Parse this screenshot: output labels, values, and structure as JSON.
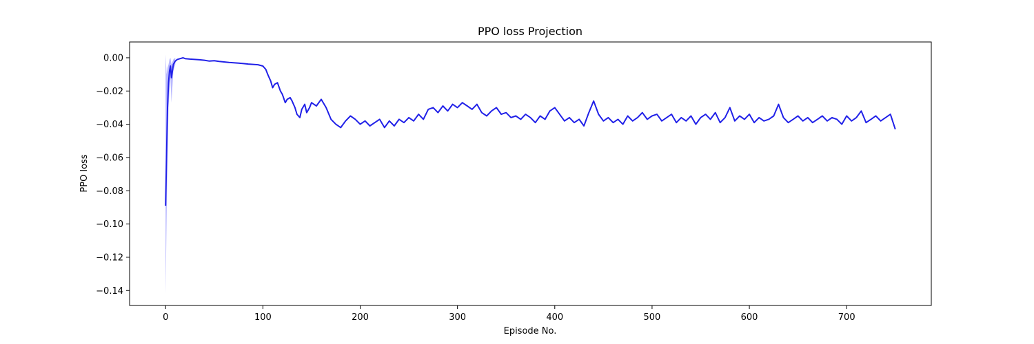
{
  "chart_data": {
    "type": "line",
    "title": "PPO loss Projection",
    "xlabel": "Episode No.",
    "ylabel": "PPO loss",
    "xlim": [
      -37,
      787
    ],
    "ylim": [
      -0.149,
      0.0095
    ],
    "x_ticks": [
      0,
      100,
      200,
      300,
      400,
      500,
      600,
      700
    ],
    "y_ticks": [
      0.0,
      -0.02,
      -0.04,
      -0.06,
      -0.08,
      -0.1,
      -0.12,
      -0.14
    ],
    "x_tick_labels": [
      "0",
      "100",
      "200",
      "300",
      "400",
      "500",
      "600",
      "700"
    ],
    "y_tick_labels": [
      "0.00",
      "−0.02",
      "−0.04",
      "−0.06",
      "−0.08",
      "−0.10",
      "−0.12",
      "−0.14"
    ],
    "grid": false,
    "legend": "none",
    "colors": {
      "line": "#2020e8",
      "band": "#8a8aff"
    },
    "series": [
      {
        "x": [
          0,
          1,
          2,
          3,
          4,
          5,
          6,
          8,
          10,
          12,
          15,
          18,
          20,
          25,
          30,
          35,
          40,
          45,
          50,
          55,
          60,
          65,
          70,
          75,
          80,
          85,
          90,
          95,
          100,
          103,
          105,
          108,
          110,
          112,
          115,
          118,
          120,
          123,
          125,
          128,
          130,
          133,
          135,
          138,
          140,
          143,
          145,
          148,
          150,
          155,
          160,
          165,
          170,
          175,
          180,
          185,
          190,
          195,
          200,
          205,
          210,
          215,
          220,
          225,
          230,
          235,
          240,
          245,
          250,
          255,
          260,
          265,
          270,
          275,
          280,
          285,
          290,
          295,
          300,
          305,
          310,
          315,
          320,
          325,
          330,
          335,
          340,
          345,
          350,
          355,
          360,
          365,
          370,
          375,
          380,
          385,
          390,
          395,
          400,
          405,
          410,
          415,
          420,
          425,
          430,
          435,
          440,
          445,
          450,
          455,
          460,
          465,
          470,
          475,
          480,
          485,
          490,
          495,
          500,
          505,
          510,
          515,
          520,
          525,
          530,
          535,
          540,
          545,
          550,
          555,
          560,
          565,
          570,
          575,
          580,
          585,
          590,
          595,
          600,
          605,
          610,
          615,
          620,
          625,
          630,
          635,
          640,
          645,
          650,
          655,
          660,
          665,
          670,
          675,
          680,
          685,
          690,
          695,
          700,
          705,
          710,
          715,
          720,
          725,
          730,
          735,
          740,
          745,
          750
        ],
        "y": [
          -0.089,
          -0.06,
          -0.03,
          -0.015,
          -0.008,
          -0.005,
          -0.012,
          -0.004,
          -0.002,
          -0.001,
          -0.0005,
          0.0,
          -0.0005,
          -0.0008,
          -0.001,
          -0.0012,
          -0.0015,
          -0.002,
          -0.0018,
          -0.0022,
          -0.0025,
          -0.0028,
          -0.003,
          -0.0032,
          -0.0035,
          -0.0038,
          -0.004,
          -0.0042,
          -0.005,
          -0.007,
          -0.01,
          -0.014,
          -0.018,
          -0.016,
          -0.015,
          -0.02,
          -0.022,
          -0.027,
          -0.025,
          -0.024,
          -0.026,
          -0.03,
          -0.034,
          -0.036,
          -0.031,
          -0.028,
          -0.033,
          -0.03,
          -0.027,
          -0.029,
          -0.025,
          -0.03,
          -0.037,
          -0.04,
          -0.042,
          -0.038,
          -0.035,
          -0.037,
          -0.04,
          -0.038,
          -0.041,
          -0.039,
          -0.037,
          -0.042,
          -0.038,
          -0.041,
          -0.037,
          -0.039,
          -0.036,
          -0.038,
          -0.034,
          -0.037,
          -0.031,
          -0.03,
          -0.033,
          -0.029,
          -0.032,
          -0.028,
          -0.03,
          -0.027,
          -0.029,
          -0.031,
          -0.028,
          -0.033,
          -0.035,
          -0.032,
          -0.03,
          -0.034,
          -0.033,
          -0.036,
          -0.035,
          -0.037,
          -0.034,
          -0.036,
          -0.039,
          -0.035,
          -0.037,
          -0.032,
          -0.03,
          -0.034,
          -0.038,
          -0.036,
          -0.039,
          -0.037,
          -0.041,
          -0.033,
          -0.026,
          -0.034,
          -0.038,
          -0.036,
          -0.039,
          -0.037,
          -0.04,
          -0.035,
          -0.038,
          -0.036,
          -0.033,
          -0.037,
          -0.035,
          -0.034,
          -0.038,
          -0.036,
          -0.034,
          -0.039,
          -0.036,
          -0.038,
          -0.035,
          -0.04,
          -0.036,
          -0.034,
          -0.037,
          -0.033,
          -0.039,
          -0.036,
          -0.03,
          -0.038,
          -0.035,
          -0.037,
          -0.034,
          -0.039,
          -0.036,
          -0.038,
          -0.037,
          -0.035,
          -0.028,
          -0.036,
          -0.039,
          -0.037,
          -0.035,
          -0.038,
          -0.036,
          -0.039,
          -0.037,
          -0.035,
          -0.038,
          -0.036,
          -0.037,
          -0.04,
          -0.035,
          -0.038,
          -0.036,
          -0.032,
          -0.039,
          -0.037,
          -0.035,
          -0.038,
          -0.036,
          -0.034,
          -0.043
        ]
      }
    ],
    "band": {
      "x": [
        0,
        1,
        2,
        3,
        4,
        5,
        6,
        8,
        10
      ],
      "upper": [
        0.002,
        -0.01,
        -0.006,
        -0.004,
        -0.001,
        0.0,
        -0.004,
        -0.001,
        0.0
      ],
      "lower": [
        -0.142,
        -0.1,
        -0.06,
        -0.03,
        -0.02,
        -0.012,
        -0.027,
        -0.008,
        -0.004
      ]
    }
  }
}
